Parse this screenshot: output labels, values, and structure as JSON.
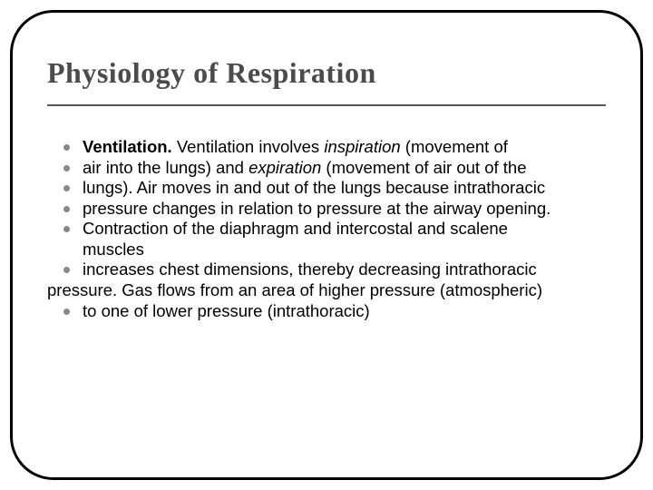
{
  "slide": {
    "title": "Physiology of Respiration",
    "title_color": "#4b4b4b",
    "title_fontsize": 32,
    "rule_color": "#555555",
    "bullet_color": "#888888",
    "body_fontsize": 18.5,
    "frame_border_color": "#000000",
    "frame_border_radius": 48,
    "lines": {
      "l0a": "Ventilation. ",
      "l0b": "Ventilation involves ",
      "l0c": "inspiration ",
      "l0d": "(movement of",
      "l1a": "air into the lungs) and ",
      "l1b": "expiration ",
      "l1c": "(movement of air out of the",
      "l2": "lungs). Air moves in and out of the lungs because intrathoracic",
      "l3": "pressure changes in relation to pressure at the airway opening.",
      "l4a": "Contraction of the diaphragm and intercostal and scalene",
      "l4b": "muscles",
      "l5": "increases chest dimensions, thereby decreasing intrathoracic",
      "l6": "pressure. Gas flows from an area of higher pressure (atmospheric)",
      "l7": "to one of lower pressure (intrathoracic)"
    }
  }
}
